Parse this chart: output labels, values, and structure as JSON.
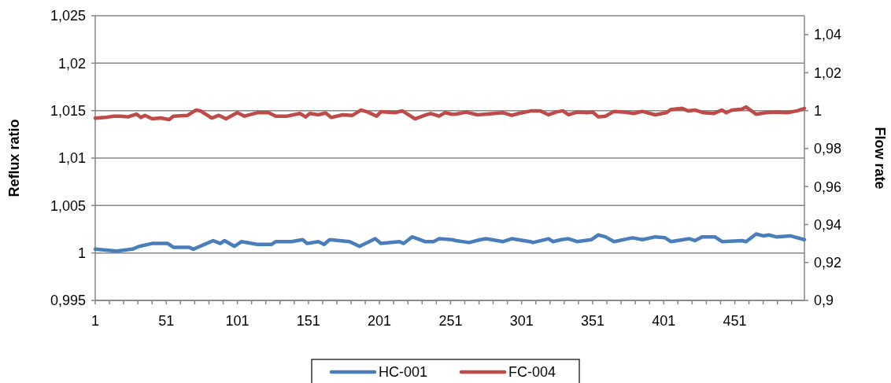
{
  "chart_data": {
    "type": "line",
    "ylabel": "Reflux ratio",
    "y2label": "Flow rate",
    "xlim": [
      1,
      500
    ],
    "xticks": [
      1,
      {
        "value": 11,
        "label": null
      },
      {
        "value": 21,
        "label": null
      },
      {
        "value": 31,
        "label": null
      },
      {
        "value": 41,
        "label": null
      },
      51,
      {
        "value": 61,
        "label": null
      },
      {
        "value": 71,
        "label": null
      },
      {
        "value": 81,
        "label": null
      },
      {
        "value": 91,
        "label": null
      },
      101,
      {
        "value": 111,
        "label": null
      },
      {
        "value": 121,
        "label": null
      },
      {
        "value": 131,
        "label": null
      },
      {
        "value": 141,
        "label": null
      },
      151,
      {
        "value": 161,
        "label": null
      },
      {
        "value": 171,
        "label": null
      },
      {
        "value": 181,
        "label": null
      },
      {
        "value": 191,
        "label": null
      },
      201,
      {
        "value": 211,
        "label": null
      },
      {
        "value": 221,
        "label": null
      },
      {
        "value": 231,
        "label": null
      },
      {
        "value": 241,
        "label": null
      },
      251,
      {
        "value": 261,
        "label": null
      },
      {
        "value": 271,
        "label": null
      },
      {
        "value": 281,
        "label": null
      },
      {
        "value": 291,
        "label": null
      },
      301,
      {
        "value": 311,
        "label": null
      },
      {
        "value": 321,
        "label": null
      },
      {
        "value": 331,
        "label": null
      },
      {
        "value": 341,
        "label": null
      },
      351,
      {
        "value": 361,
        "label": null
      },
      {
        "value": 371,
        "label": null
      },
      {
        "value": 381,
        "label": null
      },
      {
        "value": 391,
        "label": null
      },
      401,
      {
        "value": 411,
        "label": null
      },
      {
        "value": 421,
        "label": null
      },
      {
        "value": 431,
        "label": null
      },
      {
        "value": 441,
        "label": null
      },
      451,
      {
        "value": 461,
        "label": null
      },
      {
        "value": 471,
        "label": null
      },
      {
        "value": 481,
        "label": null
      },
      {
        "value": 491,
        "label": null
      }
    ],
    "ylim": [
      0.995,
      1.025
    ],
    "yticks": [
      {
        "value": 0.995,
        "label": "0,995"
      },
      {
        "value": 1,
        "label": "1"
      },
      {
        "value": 1.005,
        "label": "1,005"
      },
      {
        "value": 1.01,
        "label": "1,01"
      },
      {
        "value": 1.015,
        "label": "1,015"
      },
      {
        "value": 1.02,
        "label": "1,02"
      },
      {
        "value": 1.025,
        "label": "1,025"
      }
    ],
    "y2lim": [
      0.9,
      1.05
    ],
    "y2ticks": [
      {
        "value": 0.9,
        "label": "0,9"
      },
      {
        "value": 0.92,
        "label": "0,92"
      },
      {
        "value": 0.94,
        "label": "0,94"
      },
      {
        "value": 0.96,
        "label": "0,96"
      },
      {
        "value": 0.98,
        "label": "0,98"
      },
      {
        "value": 1,
        "label": "1"
      },
      {
        "value": 1.02,
        "label": "1,02"
      },
      {
        "value": 1.04,
        "label": "1,04"
      }
    ],
    "grid": "y",
    "legend": "bottom",
    "marker": "none",
    "line_style": "solid",
    "series": [
      {
        "name": "HC-001",
        "color": "#4a7ebb",
        "x": [
          1,
          16,
          27,
          32,
          41,
          52,
          56,
          67,
          70,
          84,
          89,
          92,
          99,
          104,
          115,
          125,
          128,
          139,
          147,
          150,
          158,
          162,
          166,
          180,
          187,
          198,
          202,
          215,
          218,
          224,
          233,
          239,
          243,
          252,
          255,
          264,
          272,
          276,
          288,
          294,
          307,
          309,
          320,
          323,
          329,
          334,
          340,
          350,
          355,
          360,
          366,
          379,
          386,
          395,
          402,
          406,
          419,
          423,
          428,
          437,
          442,
          456,
          459,
          466,
          471,
          475,
          480,
          490,
          500
        ],
        "values": [
          1.0004,
          1.0002,
          1.0004,
          1.0007,
          1.001,
          1.001,
          1.0006,
          1.0006,
          1.0004,
          1.0013,
          1.001,
          1.0013,
          1.0007,
          1.0012,
          1.0009,
          1.0009,
          1.0012,
          1.0012,
          1.0014,
          1.001,
          1.0012,
          1.0009,
          1.0014,
          1.0012,
          1.0007,
          1.0015,
          1.001,
          1.0012,
          1.001,
          1.0017,
          1.0012,
          1.0012,
          1.0015,
          1.0014,
          1.0013,
          1.0011,
          1.0014,
          1.0015,
          1.0012,
          1.0015,
          1.0012,
          1.0011,
          1.0015,
          1.0012,
          1.0014,
          1.0015,
          1.0012,
          1.0014,
          1.0019,
          1.0017,
          1.0012,
          1.0016,
          1.0014,
          1.0017,
          1.0016,
          1.0012,
          1.0015,
          1.0013,
          1.0017,
          1.0017,
          1.0012,
          1.0013,
          1.0012,
          1.002,
          1.0018,
          1.0019,
          1.0017,
          1.0018,
          1.0014
        ]
      },
      {
        "name": "FC-004",
        "color": "#be4b48",
        "axis": "y2",
        "x": [
          1,
          8,
          14,
          19,
          24,
          30,
          33,
          36,
          41,
          47,
          53,
          56,
          66,
          72,
          75,
          83,
          88,
          93,
          101,
          106,
          115,
          123,
          128,
          136,
          145,
          149,
          152,
          158,
          163,
          167,
          175,
          182,
          188,
          193,
          199,
          202,
          212,
          217,
          226,
          234,
          237,
          243,
          247,
          252,
          255,
          262,
          270,
          277,
          288,
          294,
          299,
          308,
          314,
          320,
          325,
          330,
          334,
          340,
          347,
          351,
          355,
          360,
          366,
          373,
          380,
          386,
          395,
          403,
          406,
          414,
          418,
          423,
          429,
          436,
          442,
          445,
          449,
          456,
          459,
          466,
          473,
          480,
          488,
          495,
          500
        ],
        "values": [
          0.996,
          0.9964,
          0.9971,
          0.9971,
          0.9967,
          0.9982,
          0.9964,
          0.9975,
          0.9957,
          0.9961,
          0.9953,
          0.9971,
          0.9975,
          1.0003,
          0.9999,
          0.9961,
          0.9975,
          0.9957,
          0.9989,
          0.9971,
          0.9989,
          0.9989,
          0.9971,
          0.9971,
          0.9985,
          0.9967,
          0.9985,
          0.9978,
          0.9988,
          0.9964,
          0.9978,
          0.9975,
          1.0003,
          0.9992,
          0.9971,
          0.9994,
          0.9989,
          0.9999,
          0.9957,
          0.9978,
          0.9985,
          0.9971,
          0.9989,
          0.9981,
          0.9982,
          0.9992,
          0.9978,
          0.9982,
          0.9989,
          0.9975,
          0.9985,
          0.9999,
          0.9999,
          0.9978,
          0.9992,
          0.9999,
          0.9978,
          0.9992,
          0.9989,
          0.9992,
          0.9967,
          0.9971,
          0.9996,
          0.9992,
          0.9985,
          0.9996,
          0.9978,
          0.9989,
          1.0006,
          1.0012,
          0.9999,
          1.0003,
          0.9989,
          0.9985,
          1.0003,
          0.9989,
          1.0003,
          1.0008,
          1.0019,
          0.9981,
          0.9989,
          0.9992,
          0.9989,
          0.9999,
          1.0012
        ]
      }
    ]
  }
}
